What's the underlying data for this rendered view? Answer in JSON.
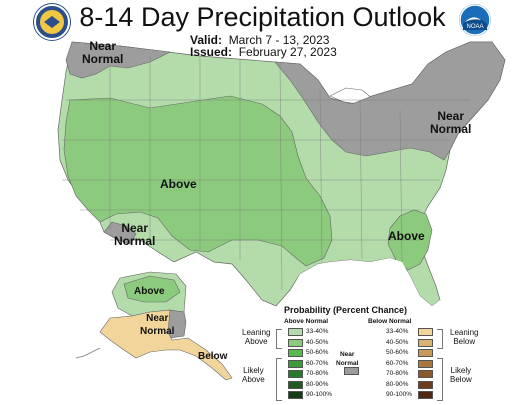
{
  "header": {
    "title": "8-14 Day Precipitation Outlook",
    "valid_label": "Valid:",
    "valid_value": "March 7 - 13, 2023",
    "issued_label": "Issued:",
    "issued_value": "February 27, 2023",
    "left_logo": "doc-seal-icon",
    "right_logo": "noaa-logo-icon",
    "right_logo_text": "NOAA"
  },
  "map_labels": {
    "near_normal_nw": "Near\nNormal",
    "near_normal_ne": "Near\nNormal",
    "near_normal_sw": "Near\nNormal",
    "above_west": "Above",
    "above_se": "Above",
    "above_ak": "Above",
    "near_normal_ak": "Near\nNormal",
    "below_ak": "Below"
  },
  "colors": {
    "above_33_40": "#b3dcaa",
    "above_40_50": "#8ccb7e",
    "above_50_60": "#5ab94e",
    "above_60_70": "#3c9a3a",
    "above_70_80": "#2a7a2c",
    "above_80_90": "#1e5c22",
    "above_90_100": "#123d16",
    "below_33_40": "#f1d59b",
    "below_40_50": "#dcb273",
    "below_50_60": "#c79a59",
    "below_60_70": "#a9783f",
    "below_70_80": "#8a5a2a",
    "below_80_90": "#6e3e1c",
    "below_90_100": "#4f2814",
    "near_normal": "#9d9d9d",
    "canada_mexico": "#ffffff",
    "water": "#ffffff"
  },
  "legend": {
    "title": "Probability (Percent Chance)",
    "above_header": "Above Normal",
    "below_header": "Below Normal",
    "above_ranges": [
      "33-40%",
      "40-50%",
      "50-60%",
      "60-70%",
      "70-80%",
      "80-90%",
      "90-100%"
    ],
    "below_ranges": [
      "33-40%",
      "40-50%",
      "50-60%",
      "60-70%",
      "70-80%",
      "80-90%",
      "90-100%"
    ],
    "leaning_above": "Leaning\nAbove",
    "likely_above": "Likely\nAbove",
    "near_normal": "Near\nNormal",
    "leaning_below": "Leaning\nBelow",
    "likely_below": "Likely\nBelow"
  }
}
